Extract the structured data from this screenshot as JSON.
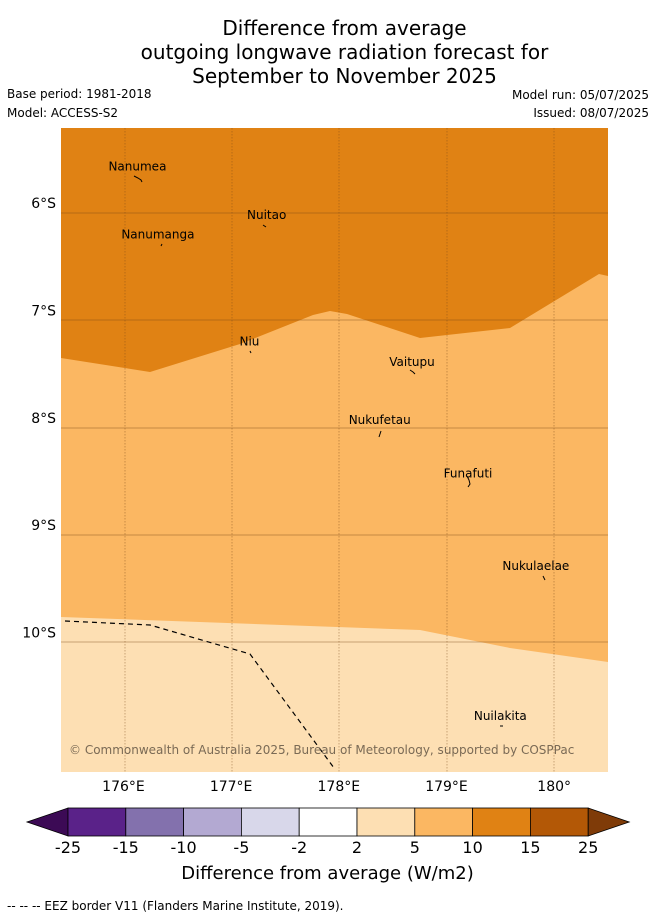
{
  "title": {
    "line1": "Difference from average",
    "line2": "outgoing longwave radiation forecast for",
    "line3": "September to November 2025"
  },
  "meta": {
    "base_period": "Base period: 1981-2018",
    "model": "Model: ACCESS-S2",
    "model_run": "Model run: 05/07/2025",
    "issued": "Issued: 08/07/2025"
  },
  "map": {
    "lon_range": [
      175.42,
      180.5
    ],
    "lat_range": [
      -5.3,
      -11.3
    ],
    "lon_ticks": [
      {
        "value": 176,
        "label": "176°E"
      },
      {
        "value": 177,
        "label": "177°E"
      },
      {
        "value": 178,
        "label": "178°E"
      },
      {
        "value": 179,
        "label": "179°E"
      },
      {
        "value": 180,
        "label": "180°"
      }
    ],
    "lat_ticks": [
      {
        "value": -6,
        "label": "6°S"
      },
      {
        "value": -7,
        "label": "7°S"
      },
      {
        "value": -8,
        "label": "8°S"
      },
      {
        "value": -9,
        "label": "9°S"
      },
      {
        "value": -10,
        "label": "10°S"
      }
    ],
    "places": [
      {
        "name": "Nanumea",
        "lon": 176.13,
        "lat": -5.66
      },
      {
        "name": "Nuitao",
        "lon": 177.33,
        "lat": -6.11
      },
      {
        "name": "Nanumanga",
        "lon": 176.32,
        "lat": -6.29
      },
      {
        "name": "Niu",
        "lon": 177.17,
        "lat": -7.29
      },
      {
        "name": "Vaitupu",
        "lon": 178.68,
        "lat": -7.48
      },
      {
        "name": "Nukufetau",
        "lon": 178.38,
        "lat": -8.02
      },
      {
        "name": "Funafuti",
        "lon": 179.2,
        "lat": -8.52
      },
      {
        "name": "Nukulaelae",
        "lon": 179.83,
        "lat": -9.38
      },
      {
        "name": "Nuilakita",
        "lon": 179.5,
        "lat": -10.78
      }
    ],
    "attribution": "© Commonwealth of Australia 2025, Bureau of Meteorology, supported by COSPPac"
  },
  "colorbar": {
    "colors": [
      "#3c0a55",
      "#5a2289",
      "#8371ad",
      "#b3a9d2",
      "#d8d7ea",
      "#ffffff",
      "#fddfb3",
      "#fbb762",
      "#e08214",
      "#b35806",
      "#7f3b08"
    ],
    "labels": [
      "-25",
      "-15",
      "-10",
      "-5",
      "-2",
      "2",
      "5",
      "10",
      "15",
      "25"
    ],
    "title": "Difference from average (W/m2)"
  },
  "legend_note": "--  --  -- EEZ border V11 (Flanders Marine Institute, 2019)."
}
